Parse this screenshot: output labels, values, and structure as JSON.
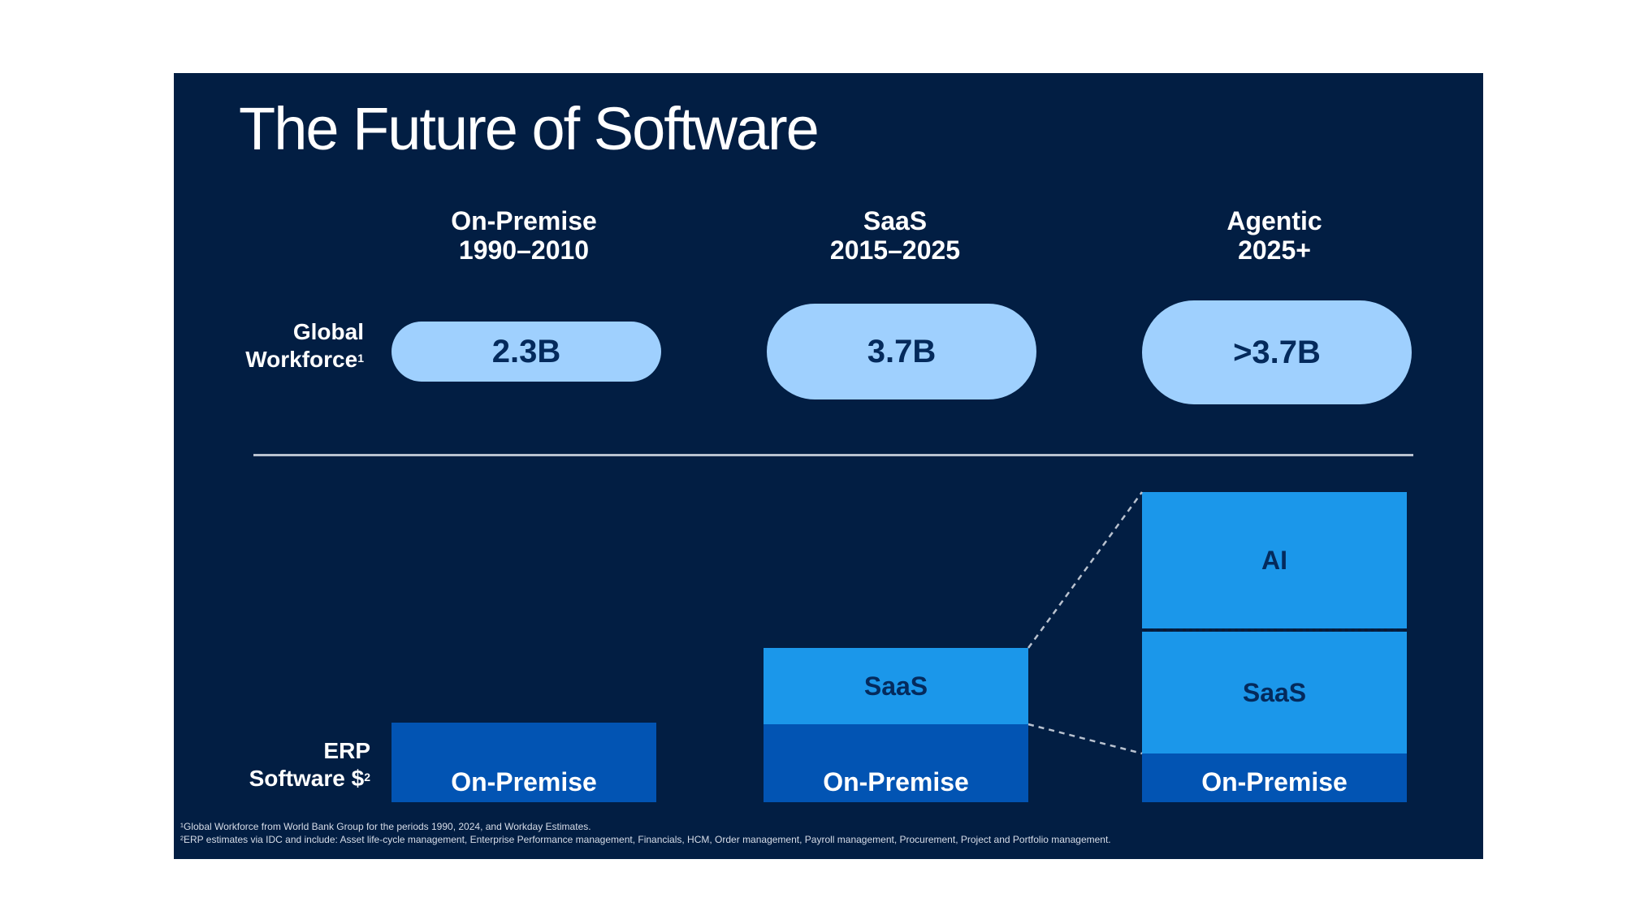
{
  "slide": {
    "title": "The Future of Software",
    "colors": {
      "background": "#021e43",
      "pill": "#9fd0fe",
      "on_premise": "#0254b3",
      "saas": "#1b97ea",
      "ai": "#1b97ea"
    }
  },
  "columns": [
    {
      "name": "On-Premise",
      "period": "1990–2010"
    },
    {
      "name": "SaaS",
      "period": "2015–2025"
    },
    {
      "name": "Agentic",
      "period": "2025+"
    }
  ],
  "rows": {
    "workforce": {
      "label_line1": "Global",
      "label_line2": "Workforce",
      "footnote_ref": "1"
    },
    "erp": {
      "label_line1": "ERP",
      "label_line2": "Software $",
      "footnote_ref": "2"
    }
  },
  "workforce_values": [
    "2.3B",
    "3.7B",
    ">3.7B"
  ],
  "erp_segments": {
    "on_premise": "On-Premise",
    "saas": "SaaS",
    "ai": "AI"
  },
  "chart_data": {
    "type": "bar",
    "stacked": true,
    "categories": [
      "On-Premise 1990–2010",
      "SaaS 2015–2025",
      "Agentic 2025+"
    ],
    "series": [
      {
        "name": "On-Premise",
        "values": [
          1,
          1,
          1
        ]
      },
      {
        "name": "SaaS",
        "values": [
          0,
          1,
          2
        ]
      },
      {
        "name": "AI",
        "values": [
          0,
          0,
          2.6
        ]
      }
    ],
    "note": "Relative ERP software spend (illustrative, no axis)"
  },
  "footnotes": [
    "¹Global Workforce from World Bank Group for the periods 1990, 2024, and Workday Estimates.",
    "²ERP estimates via IDC and include: Asset life-cycle management, Enterprise Performance management, Financials, HCM, Order management, Payroll management, Procurement, Project and Portfolio management."
  ]
}
